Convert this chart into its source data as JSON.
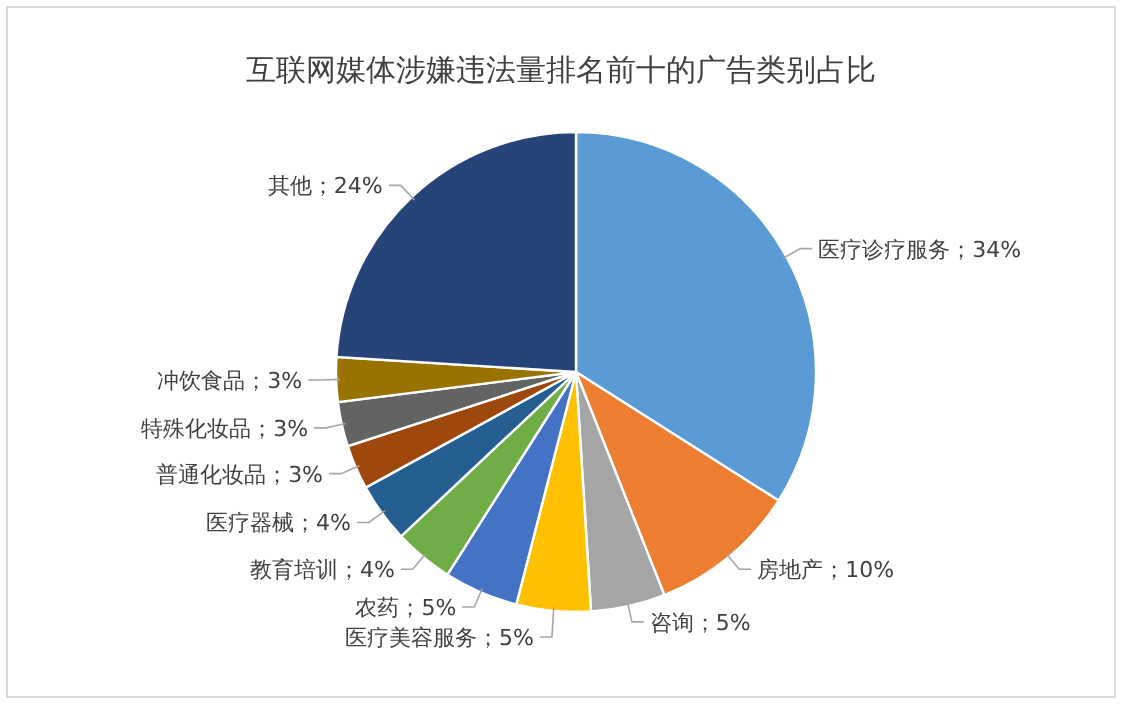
{
  "chart_data": {
    "type": "pie",
    "title": "互联网媒体涉嫌违法量排名前十的广告类别占比",
    "categories": [
      "医疗诊疗服务",
      "房地产",
      "咨询",
      "医疗美容服务",
      "农药",
      "教育培训",
      "医疗器械",
      "普通化妆品",
      "特殊化妆品",
      "冲饮食品",
      "其他"
    ],
    "values": [
      34,
      10,
      5,
      5,
      5,
      4,
      4,
      3,
      3,
      3,
      24
    ],
    "value_labels": [
      "；34%",
      "；10%",
      "；5%",
      "；5%",
      "；5%",
      "；4%",
      "；4%",
      "；3%",
      "；3%",
      "；3%",
      "；24%"
    ],
    "legend": false,
    "colors": [
      "#5b9bd5",
      "#ed7d31",
      "#a5a5a5",
      "#ffc000",
      "#4472c4",
      "#70ad47",
      "#255e91",
      "#9e480e",
      "#636363",
      "#997300",
      "#264478"
    ]
  }
}
